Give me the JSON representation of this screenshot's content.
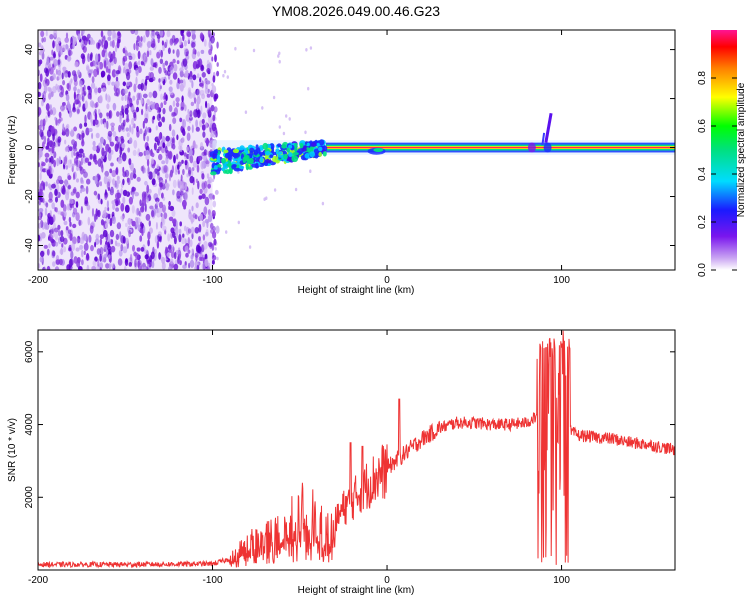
{
  "title": "YM08.2026.049.00.46.G23",
  "colors": {
    "snr_line": "#ee3333",
    "scatter_low": "#c8a8f0",
    "scatter_mid": "#8a3ae0",
    "scatter_high": "#5a00d0"
  },
  "chart_data": [
    {
      "type": "heatmap",
      "name": "spectrogram",
      "title": "YM08.2026.049.00.46.G23",
      "xlabel": "Height of straight line (km)",
      "ylabel": "Frequency (Hz)",
      "xlim": [
        -200,
        165
      ],
      "ylim": [
        -50,
        48
      ],
      "xticks": [
        -200,
        -100,
        0,
        100
      ],
      "yticks": [
        -40,
        -20,
        0,
        20,
        40
      ],
      "noise_region_x": [
        -200,
        -100
      ],
      "signal_band_hz": 0,
      "colorbar": {
        "label": "Normalized spectral amplitude",
        "range": [
          0,
          1
        ],
        "ticks": [
          0.0,
          0.2,
          0.4,
          0.6,
          0.8
        ],
        "tick_labels": [
          "0.0",
          "0.2",
          "0.4",
          "0.6",
          "0.8"
        ],
        "colormap": "rainbow (white-purple-blue-cyan-green-yellow-red-pink)"
      }
    },
    {
      "type": "line",
      "name": "snr",
      "xlabel": "Height of straight line (km)",
      "ylabel": "SNR (10 * v/v)",
      "xlim": [
        -200,
        165
      ],
      "ylim": [
        0,
        6600
      ],
      "xticks": [
        -200,
        -100,
        0,
        100
      ],
      "yticks": [
        2000,
        4000,
        6000
      ],
      "series": [
        {
          "name": "SNR",
          "envelope_x": [
            -200,
            -150,
            -100,
            -90,
            -80,
            -70,
            -60,
            -50,
            -45,
            -40,
            -35,
            -30,
            -25,
            -20,
            -15,
            -10,
            -5,
            0,
            10,
            20,
            30,
            40,
            50,
            60,
            70,
            80,
            85,
            90,
            95,
            100,
            105,
            110,
            120,
            130,
            140,
            150,
            165
          ],
          "envelope_y": [
            150,
            150,
            170,
            300,
            700,
            900,
            1100,
            1500,
            1700,
            1300,
            1000,
            1300,
            1700,
            1900,
            2200,
            2400,
            2600,
            2800,
            3200,
            3600,
            3900,
            4050,
            4050,
            4000,
            4000,
            4050,
            4200,
            3900,
            4000,
            4150,
            3800,
            3700,
            3650,
            3600,
            3500,
            3450,
            3300
          ]
        }
      ]
    }
  ]
}
